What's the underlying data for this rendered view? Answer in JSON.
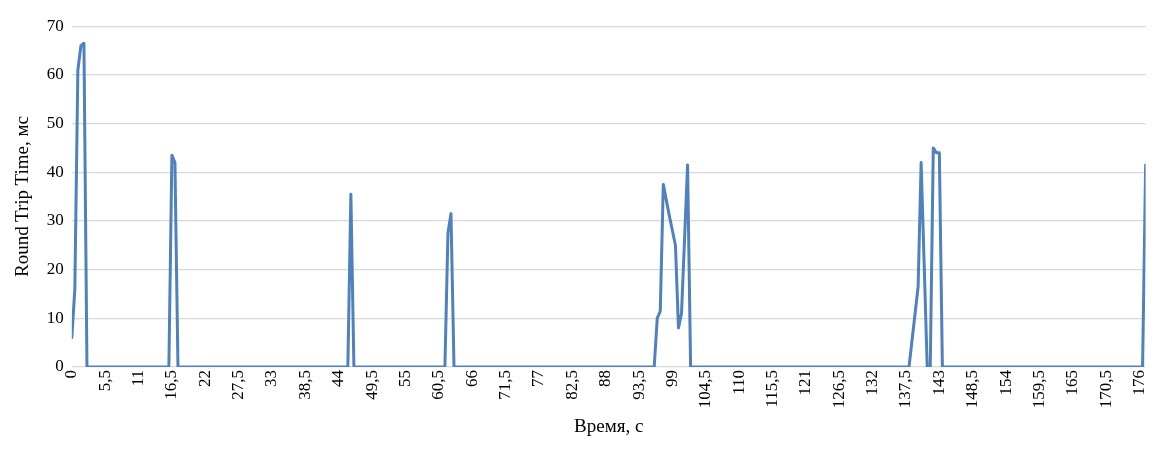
{
  "chart_data": {
    "type": "line",
    "xlabel": "Время, с",
    "ylabel": "Round Trip Time, мс",
    "x": [
      0,
      0.5,
      1,
      1.5,
      2,
      2.5,
      16,
      16.5,
      17,
      17.5,
      45.5,
      46,
      46.5,
      61.5,
      62,
      62.5,
      63,
      96,
      96.5,
      97,
      97.5,
      98.5,
      99.5,
      100,
      100.5,
      101.5,
      102,
      138,
      139.5,
      140,
      141,
      141.5,
      142,
      142.5,
      143,
      143.5,
      176.5,
      177
    ],
    "series": [
      {
        "color": "#4f81bd",
        "values": [
          6,
          16,
          61,
          66,
          66.5,
          0,
          0,
          43.5,
          42,
          0,
          0,
          35.5,
          0,
          0,
          27.5,
          31.5,
          0,
          0,
          10,
          11.5,
          37.5,
          31,
          25,
          8,
          11,
          41.5,
          0,
          0,
          16.5,
          42,
          0,
          0,
          45,
          44,
          44,
          0,
          0,
          41.5
        ]
      }
    ],
    "xlim": [
      0,
      177
    ],
    "ylim": [
      0,
      70
    ],
    "xticks": [
      0,
      {
        "value": 5.5,
        "label": "5,5"
      },
      11,
      {
        "value": 16.5,
        "label": "16,5"
      },
      22,
      {
        "value": 27.5,
        "label": "27,5"
      },
      33,
      {
        "value": 38.5,
        "label": "38,5"
      },
      44,
      {
        "value": 49.5,
        "label": "49,5"
      },
      55,
      {
        "value": 60.5,
        "label": "60,5"
      },
      66,
      {
        "value": 71.5,
        "label": "71,5"
      },
      77,
      {
        "value": 82.5,
        "label": "82,5"
      },
      88,
      {
        "value": 93.5,
        "label": "93,5"
      },
      99,
      {
        "value": 104.5,
        "label": "104,5"
      },
      110,
      {
        "value": 115.5,
        "label": "115,5"
      },
      121,
      {
        "value": 126.5,
        "label": "126,5"
      },
      132,
      {
        "value": 137.5,
        "label": "137,5"
      },
      143,
      {
        "value": 148.5,
        "label": "148,5"
      },
      154,
      {
        "value": 159.5,
        "label": "159,5"
      },
      165,
      {
        "value": 170.5,
        "label": "170,5"
      },
      176
    ],
    "yticks": [
      0,
      10,
      20,
      30,
      40,
      50,
      60,
      70
    ],
    "grid": "y",
    "legend": false,
    "marker": "none",
    "line_style": "solid"
  }
}
